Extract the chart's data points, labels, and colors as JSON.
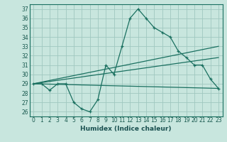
{
  "title": "",
  "xlabel": "Humidex (Indice chaleur)",
  "ylabel": "",
  "background_color": "#c8e6de",
  "grid_color": "#a0c8c0",
  "line_color": "#1a7060",
  "xlim": [
    -0.5,
    23.5
  ],
  "ylim": [
    25.5,
    37.5
  ],
  "yticks": [
    26,
    27,
    28,
    29,
    30,
    31,
    32,
    33,
    34,
    35,
    36,
    37
  ],
  "xticks": [
    0,
    1,
    2,
    3,
    4,
    5,
    6,
    7,
    8,
    9,
    10,
    11,
    12,
    13,
    14,
    15,
    16,
    17,
    18,
    19,
    20,
    21,
    22,
    23
  ],
  "series1_x": [
    0,
    1,
    2,
    3,
    4,
    5,
    6,
    7,
    8,
    9,
    10,
    11,
    12,
    13,
    14,
    15,
    16,
    17,
    18,
    19,
    20,
    21,
    22,
    23
  ],
  "series1_y": [
    29.0,
    29.0,
    28.3,
    29.0,
    29.0,
    27.0,
    26.3,
    26.0,
    27.3,
    31.0,
    30.0,
    33.0,
    36.0,
    37.0,
    36.0,
    35.0,
    34.5,
    34.0,
    32.5,
    31.8,
    31.0,
    31.0,
    29.5,
    28.5
  ],
  "series2_x": [
    0,
    23
  ],
  "series2_y": [
    29.0,
    28.5
  ],
  "series3_x": [
    0,
    23
  ],
  "series3_y": [
    29.0,
    33.0
  ],
  "series4_x": [
    0,
    23
  ],
  "series4_y": [
    29.0,
    31.8
  ]
}
